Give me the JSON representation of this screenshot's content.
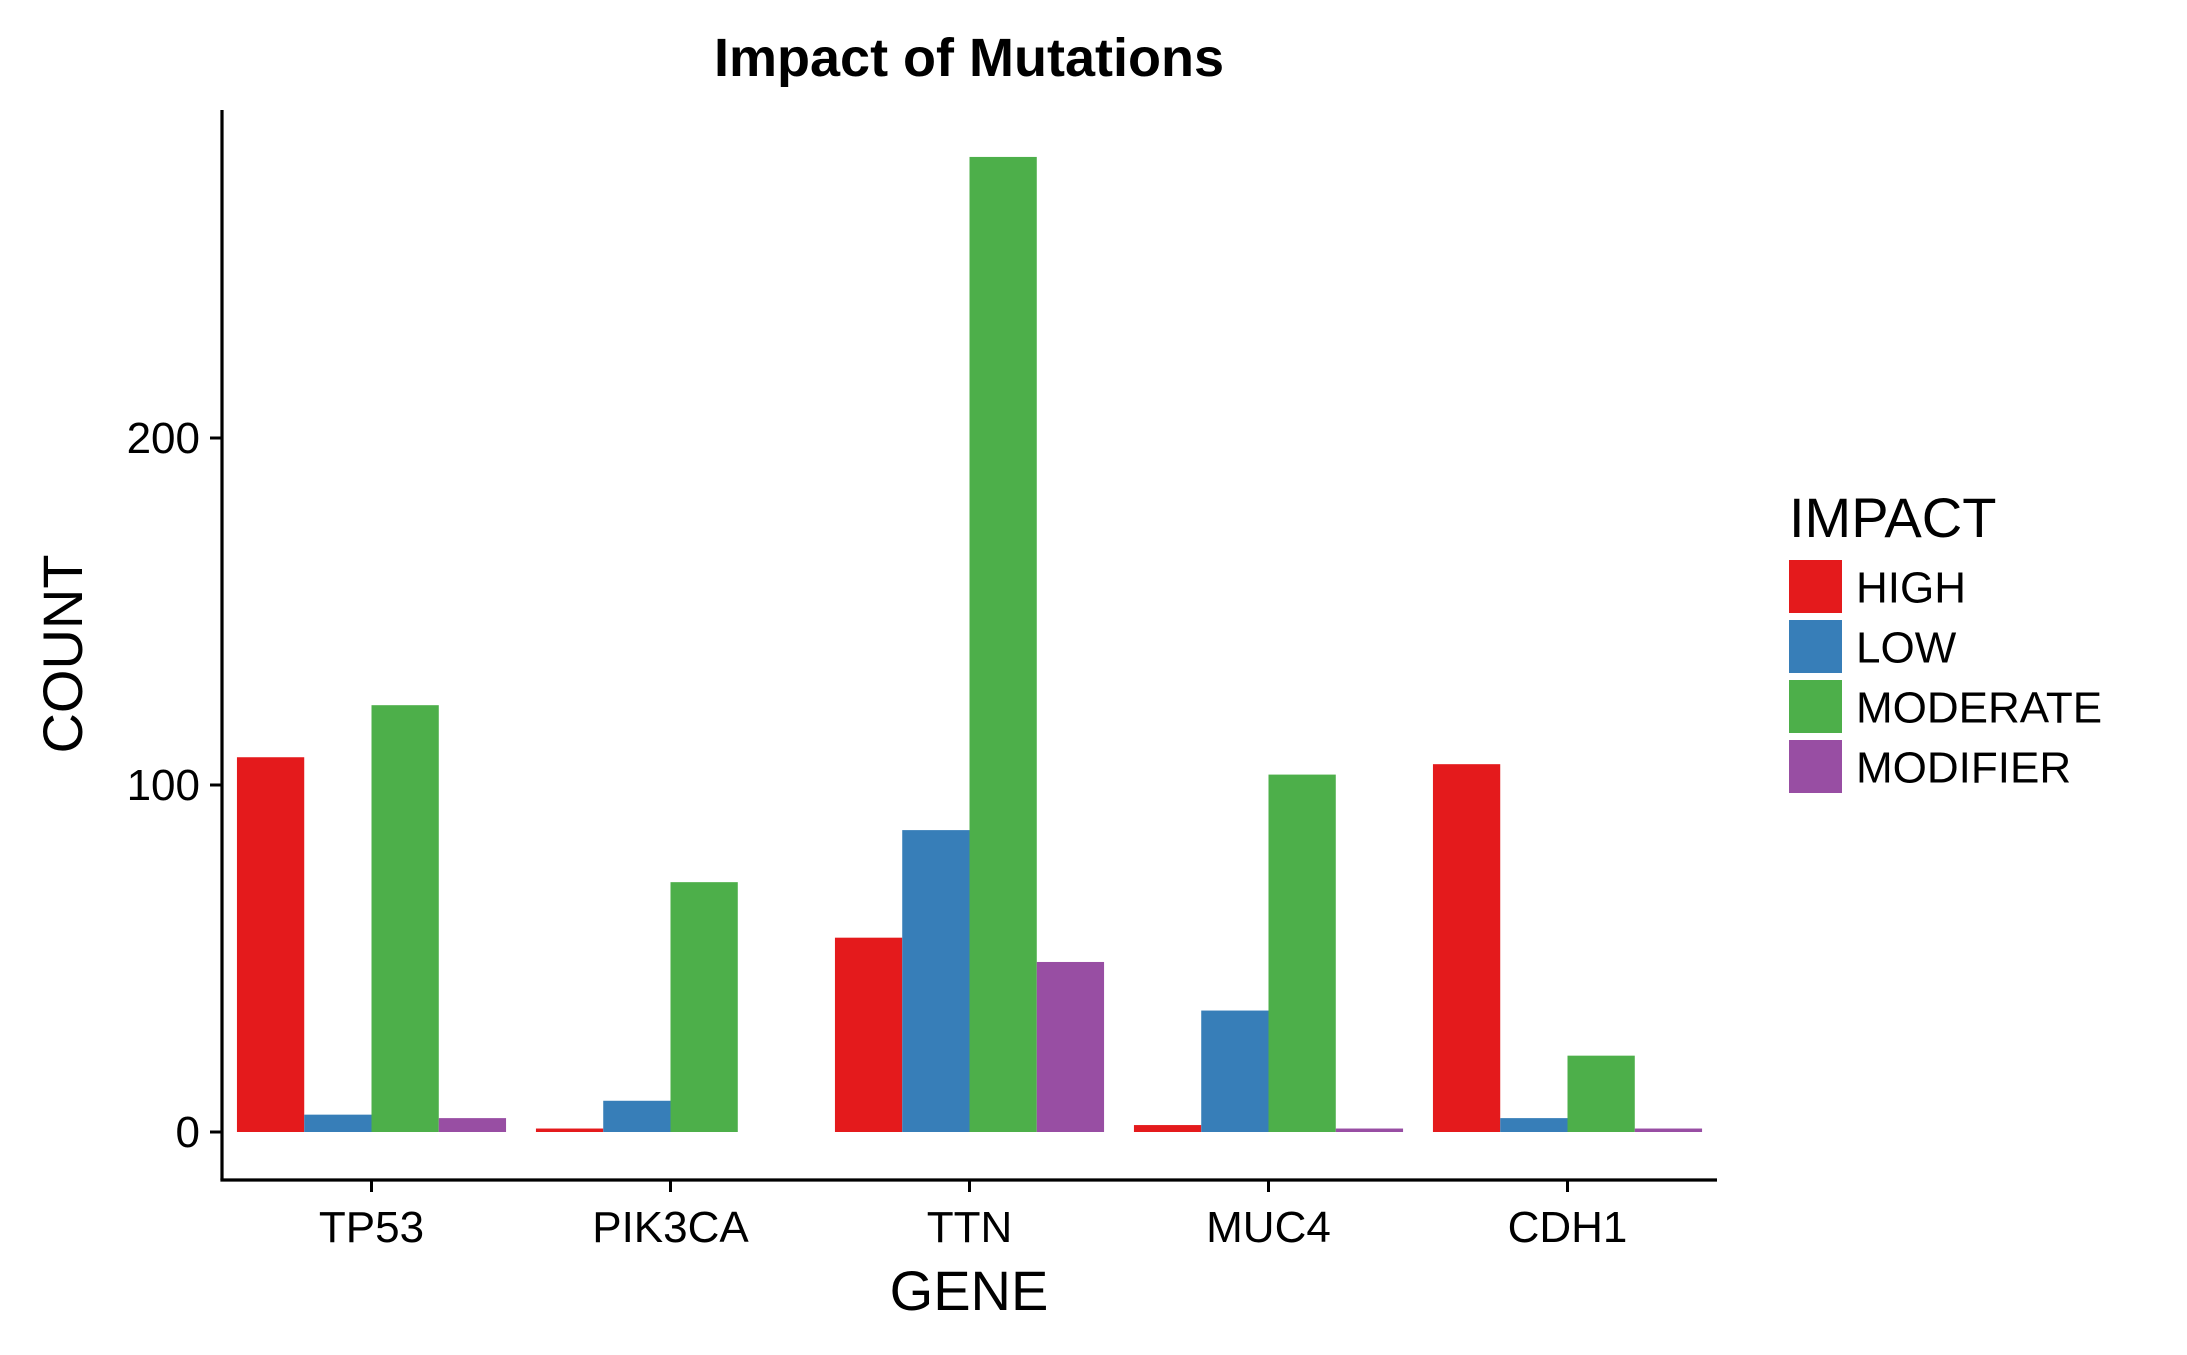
{
  "chart_data": {
    "type": "bar",
    "title": "Impact of Mutations",
    "xlabel": "GENE",
    "ylabel": "COUNT",
    "categories": [
      "TP53",
      "PIK3CA",
      "TTN",
      "MUC4",
      "CDH1"
    ],
    "series": [
      {
        "name": "HIGH",
        "color": "#E41A1C",
        "values": [
          108,
          1,
          56,
          2,
          106
        ]
      },
      {
        "name": "LOW",
        "color": "#377EB8",
        "values": [
          5,
          9,
          87,
          35,
          4
        ]
      },
      {
        "name": "MODERATE",
        "color": "#4DAF4A",
        "values": [
          123,
          72,
          281,
          103,
          22
        ]
      },
      {
        "name": "MODIFIER",
        "color": "#984EA3",
        "values": [
          4,
          0,
          49,
          1,
          1
        ]
      }
    ],
    "missing_bars": [
      [
        1,
        3
      ]
    ],
    "ylim": [
      -14,
      295
    ],
    "yticks": [
      0,
      100,
      200
    ],
    "grid": false,
    "legend": {
      "title": "IMPACT",
      "position": "right"
    }
  }
}
